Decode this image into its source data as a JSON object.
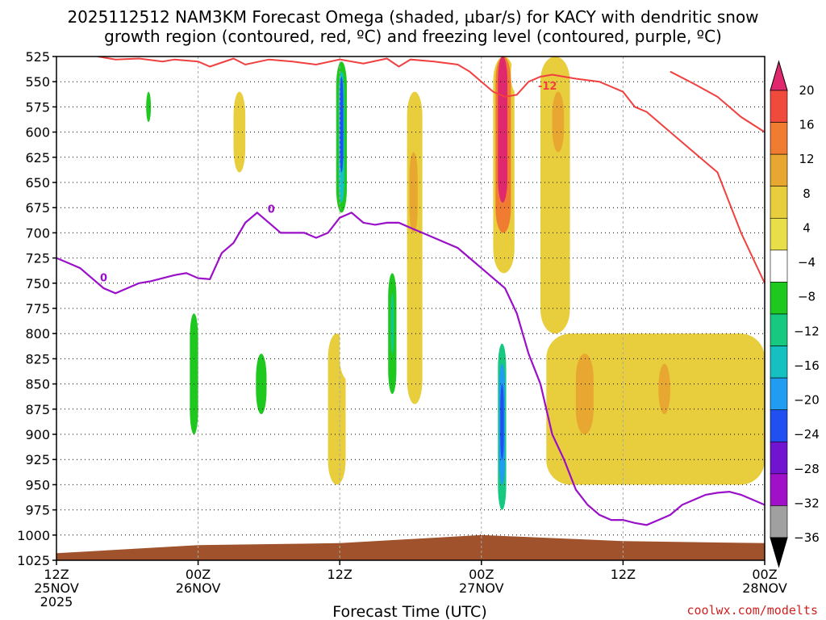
{
  "chart_data": {
    "type": "heatmap",
    "title": [
      "2025112512 NAM3KM Forecast Omega (shaded, µbar/s) for KACY with dendritic snow",
      "growth region (contoured, red, ºC) and freezing level (contoured, purple, ºC)"
    ],
    "xlabel": "Forecast Time (UTC)",
    "xlim_hours": [
      0,
      60
    ],
    "x_ticks": [
      {
        "hour": 0,
        "lines": [
          "12Z",
          "25NOV",
          "2025"
        ]
      },
      {
        "hour": 12,
        "lines": [
          "00Z",
          "26NOV"
        ]
      },
      {
        "hour": 24,
        "lines": [
          "12Z"
        ]
      },
      {
        "hour": 36,
        "lines": [
          "00Z",
          "27NOV"
        ]
      },
      {
        "hour": 48,
        "lines": [
          "12Z"
        ]
      },
      {
        "hour": 60,
        "lines": [
          "00Z",
          "28NOV"
        ]
      }
    ],
    "y_axis_hPa": {
      "min": 525,
      "max": 1025,
      "ticks": [
        525,
        550,
        575,
        600,
        625,
        650,
        675,
        700,
        725,
        750,
        775,
        800,
        825,
        850,
        875,
        900,
        925,
        950,
        975,
        1000,
        1025
      ]
    },
    "grid": true,
    "colorbar": {
      "levels": [
        20,
        16,
        12,
        8,
        4,
        -4,
        -8,
        -12,
        -16,
        -20,
        -24,
        -28,
        -32,
        -36
      ],
      "colors": [
        "#e0286e",
        "#f04a3c",
        "#ef7c30",
        "#e8a731",
        "#e8cd3c",
        "#e8df48",
        "#ffffff",
        "#1ec81e",
        "#16c880",
        "#14c0c0",
        "#209cf0",
        "#2050f0",
        "#7014d0",
        "#a010c8",
        "#a0a0a0",
        "#000000"
      ]
    },
    "omega_cells": [
      {
        "x": [
          6.8,
          7.5
        ],
        "p": [
          540,
          640
        ],
        "v": -8
      },
      {
        "x": [
          7.6,
          8.0
        ],
        "p": [
          560,
          590
        ],
        "v": -12
      },
      {
        "x": [
          12.0,
          12.6
        ],
        "p": [
          610,
          700
        ],
        "v": -8
      },
      {
        "x": [
          10.8,
          12.6
        ],
        "p": [
          740,
          975
        ],
        "v": -8
      },
      {
        "x": [
          11.3,
          12.0
        ],
        "p": [
          780,
          900
        ],
        "v": -12
      },
      {
        "x": [
          16.8,
          18.0
        ],
        "p": [
          760,
          950
        ],
        "v": -8
      },
      {
        "x": [
          16.9,
          17.8
        ],
        "p": [
          820,
          880
        ],
        "v": -12
      },
      {
        "x": [
          18.0,
          19.5
        ],
        "p": [
          660,
          900
        ],
        "v": -8
      },
      {
        "x": [
          23.2,
          25.0
        ],
        "p": [
          525,
          720
        ],
        "v": -8
      },
      {
        "x": [
          23.7,
          24.6
        ],
        "p": [
          530,
          680
        ],
        "v": -12
      },
      {
        "x": [
          23.9,
          24.4
        ],
        "p": [
          540,
          670
        ],
        "v": -20
      },
      {
        "x": [
          24.0,
          24.3
        ],
        "p": [
          545,
          640
        ],
        "v": -28
      },
      {
        "x": [
          24.0,
          26.5
        ],
        "p": [
          690,
          850
        ],
        "v": -8
      },
      {
        "x": [
          27.8,
          29.2
        ],
        "p": [
          700,
          950
        ],
        "v": -8
      },
      {
        "x": [
          28.1,
          28.8
        ],
        "p": [
          740,
          860
        ],
        "v": -12
      },
      {
        "x": [
          28.3,
          28.6
        ],
        "p": [
          760,
          820
        ],
        "v": -16
      },
      {
        "x": [
          37.2,
          38.3
        ],
        "p": [
          790,
          995
        ],
        "v": -8
      },
      {
        "x": [
          37.4,
          38.1
        ],
        "p": [
          810,
          975
        ],
        "v": -16
      },
      {
        "x": [
          37.5,
          38.0
        ],
        "p": [
          830,
          950
        ],
        "v": -24
      },
      {
        "x": [
          37.6,
          37.9
        ],
        "p": [
          850,
          925
        ],
        "v": -28
      },
      {
        "x": [
          38.5,
          39.3
        ],
        "p": [
          525,
          560
        ],
        "v": -8
      }
    ],
    "positive_cells": [
      {
        "x": [
          29.7,
          31.0
        ],
        "p": [
          560,
          870
        ],
        "v": 4
      },
      {
        "x": [
          29.9,
          30.6
        ],
        "p": [
          620,
          700
        ],
        "v": 8
      },
      {
        "x": [
          37.0,
          38.8
        ],
        "p": [
          525,
          740
        ],
        "v": 4
      },
      {
        "x": [
          37.2,
          38.5
        ],
        "p": [
          525,
          700
        ],
        "v": 12
      },
      {
        "x": [
          37.4,
          38.2
        ],
        "p": [
          525,
          670
        ],
        "v": 20
      },
      {
        "x": [
          41.0,
          43.5
        ],
        "p": [
          525,
          800
        ],
        "v": 4
      },
      {
        "x": [
          42.0,
          43.0
        ],
        "p": [
          560,
          620
        ],
        "v": 8
      },
      {
        "x": [
          41.5,
          60.0
        ],
        "p": [
          800,
          950
        ],
        "v": 4
      },
      {
        "x": [
          44.0,
          45.5
        ],
        "p": [
          820,
          900
        ],
        "v": 8
      },
      {
        "x": [
          51.0,
          52.0
        ],
        "p": [
          830,
          880
        ],
        "v": 8
      },
      {
        "x": [
          15.0,
          16.0
        ],
        "p": [
          560,
          640
        ],
        "v": 4
      },
      {
        "x": [
          23.0,
          24.5
        ],
        "p": [
          800,
          950
        ],
        "v": 4
      }
    ],
    "freezing_level_0C": {
      "label": "0",
      "x": [
        0,
        1,
        2,
        3,
        4,
        5,
        6,
        7,
        8,
        9,
        10,
        11,
        12,
        13,
        14,
        15,
        16,
        17,
        18,
        19,
        20,
        21,
        22,
        23,
        24,
        25,
        26,
        27,
        28,
        29,
        30,
        31,
        32,
        33,
        34,
        35,
        36,
        37,
        38,
        39,
        40,
        41,
        42,
        43,
        44,
        45,
        46,
        47,
        48,
        49,
        50,
        51,
        52,
        53,
        54,
        55,
        56,
        57,
        58,
        59,
        60
      ],
      "p": [
        725,
        730,
        735,
        745,
        755,
        760,
        755,
        750,
        748,
        745,
        742,
        740,
        745,
        746,
        720,
        710,
        690,
        680,
        690,
        700,
        700,
        700,
        705,
        700,
        685,
        680,
        690,
        692,
        690,
        690,
        695,
        700,
        705,
        710,
        715,
        725,
        735,
        745,
        755,
        780,
        820,
        850,
        900,
        925,
        955,
        970,
        980,
        985,
        985,
        988,
        990,
        985,
        980,
        970,
        965,
        960,
        958,
        957,
        960,
        965,
        970
      ]
    },
    "dgz_minus12C": {
      "label": "-12",
      "x": [
        3.5,
        5,
        7,
        9,
        10,
        12,
        13,
        15,
        16,
        18,
        20,
        22,
        24,
        26,
        28,
        29,
        30,
        32,
        34,
        35,
        36,
        37,
        38,
        39,
        40,
        41,
        42,
        43,
        44,
        46,
        48,
        49,
        50,
        52,
        54,
        56,
        58,
        60
      ],
      "p": [
        525,
        528,
        527,
        530,
        528,
        530,
        535,
        527,
        533,
        528,
        530,
        533,
        528,
        532,
        527,
        535,
        528,
        530,
        533,
        540,
        550,
        560,
        565,
        563,
        550,
        545,
        543,
        545,
        547,
        550,
        560,
        575,
        580,
        600,
        620,
        640,
        700,
        750
      ],
      "right_branch_x": [
        52,
        54,
        56,
        58,
        60
      ],
      "right_branch_p": [
        540,
        552,
        565,
        585,
        600
      ]
    }
  },
  "credit": "coolwx.com/modelts"
}
